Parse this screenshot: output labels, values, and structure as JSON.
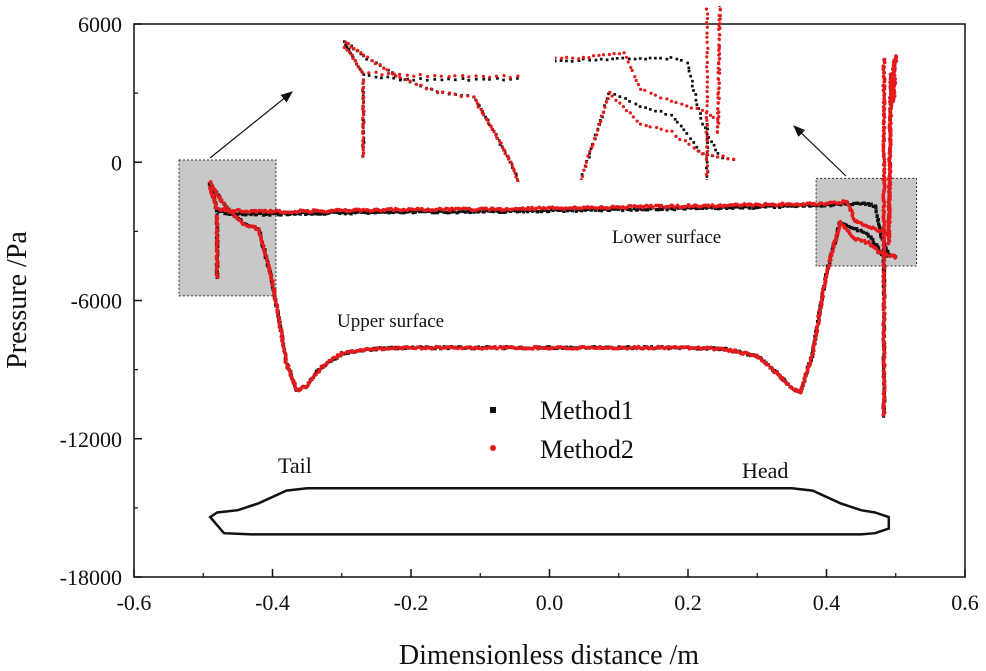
{
  "chart_data": {
    "type": "scatter",
    "xlabel": "Dimensionless distance /m",
    "ylabel": "Pressure /Pa",
    "xlim": [
      -0.6,
      0.6
    ],
    "ylim": [
      -18000,
      6000
    ],
    "x_ticks": [
      "-0.6",
      "-0.4",
      "-0.2",
      "0.0",
      "0.2",
      "0.4",
      "0.6"
    ],
    "y_ticks": [
      "6000",
      "0",
      "-6000",
      "-12000",
      "-18000"
    ],
    "legend_placement": "center",
    "grid": false,
    "colors": {
      "method1": "#111111",
      "method2": "#e41a1c",
      "zoom_box": "#c8c8c8"
    },
    "annotations": {
      "lower_surface": "Lower surface",
      "upper_surface": "Upper surface",
      "tail": "Tail",
      "head": "Head"
    },
    "series": [
      {
        "name": "Method1",
        "marker": "square",
        "color": "#111111",
        "upper_surface": {
          "x": [
            -0.49,
            -0.48,
            -0.46,
            -0.44,
            -0.42,
            -0.4,
            -0.38,
            -0.365,
            -0.35,
            -0.33,
            -0.3,
            -0.28,
            -0.25,
            -0.2,
            -0.1,
            0.0,
            0.1,
            0.2,
            0.25,
            0.3,
            0.33,
            0.35,
            0.362,
            0.38,
            0.4,
            0.42,
            0.44,
            0.46,
            0.48,
            0.5
          ],
          "y": [
            -900,
            -1400,
            -2200,
            -2700,
            -2900,
            -5200,
            -8700,
            -9900,
            -9700,
            -8900,
            -8300,
            -8200,
            -8100,
            -8050,
            -8050,
            -8050,
            -8050,
            -8050,
            -8100,
            -8400,
            -9200,
            -9800,
            -10000,
            -8300,
            -4800,
            -2600,
            -2900,
            -3100,
            -4000,
            -4100
          ]
        },
        "lower_surface": {
          "x": [
            -0.49,
            -0.48,
            -0.46,
            -0.4,
            -0.3,
            -0.2,
            -0.1,
            0.0,
            0.1,
            0.2,
            0.3,
            0.4,
            0.44,
            0.46,
            0.47,
            0.48,
            0.49
          ],
          "y": [
            -1000,
            -2100,
            -2250,
            -2250,
            -2200,
            -2150,
            -2150,
            -2100,
            -2050,
            -2000,
            -1950,
            -1850,
            -1800,
            -1800,
            -1900,
            -3300,
            -4000
          ]
        },
        "tail_spike": {
          "x": [
            -0.48,
            -0.48
          ],
          "y": [
            -2300,
            -5000
          ]
        },
        "head_spike": {
          "x": [
            0.483,
            0.483
          ],
          "y": [
            -3300,
            -11000
          ]
        }
      },
      {
        "name": "Method2",
        "marker": "circle",
        "color": "#e41a1c",
        "upper_surface": {
          "x": [
            -0.49,
            -0.48,
            -0.46,
            -0.44,
            -0.42,
            -0.4,
            -0.38,
            -0.365,
            -0.35,
            -0.33,
            -0.3,
            -0.28,
            -0.25,
            -0.2,
            -0.1,
            0.0,
            0.1,
            0.2,
            0.25,
            0.3,
            0.33,
            0.35,
            0.362,
            0.38,
            0.4,
            0.42,
            0.44,
            0.46,
            0.48,
            0.5
          ],
          "y": [
            -900,
            -1400,
            -2200,
            -2700,
            -2900,
            -5200,
            -8700,
            -9900,
            -9700,
            -8900,
            -8300,
            -8200,
            -8100,
            -8050,
            -8050,
            -8050,
            -8050,
            -8050,
            -8100,
            -8400,
            -9200,
            -9800,
            -10000,
            -8300,
            -4800,
            -2600,
            -3300,
            -3500,
            -4000,
            -4100
          ]
        },
        "lower_surface": {
          "x": [
            -0.49,
            -0.48,
            -0.46,
            -0.4,
            -0.3,
            -0.2,
            -0.1,
            0.0,
            0.1,
            0.2,
            0.3,
            0.4,
            0.43,
            0.44,
            0.46,
            0.47,
            0.48,
            0.49
          ],
          "y": [
            -1100,
            -2000,
            -2100,
            -2150,
            -2100,
            -2050,
            -2050,
            -2000,
            -1950,
            -1900,
            -1850,
            -1800,
            -1700,
            -2500,
            -2800,
            -2900,
            -3000,
            -3200
          ]
        },
        "tail_spike": {
          "x": [
            -0.48,
            -0.48
          ],
          "y": [
            -2300,
            -5000
          ]
        },
        "head_spike": {
          "x": [
            0.483,
            0.483
          ],
          "y": [
            4500,
            -11000
          ]
        },
        "head_loop": {
          "x": [
            0.49,
            0.492,
            0.495,
            0.497,
            0.5,
            0.497,
            0.493,
            0.49
          ],
          "y": [
            -3500,
            1500,
            3800,
            4200,
            4600,
            2600,
            3800,
            -3500
          ]
        }
      }
    ],
    "train_outline": {
      "x": [
        -0.49,
        -0.48,
        -0.45,
        -0.42,
        -0.38,
        -0.35,
        -0.3,
        -0.2,
        0.0,
        0.2,
        0.3,
        0.35,
        0.38,
        0.42,
        0.45,
        0.47,
        0.49,
        0.49,
        0.47,
        0.45,
        0.43,
        0.35,
        0.2,
        0.0,
        -0.2,
        -0.35,
        -0.43,
        -0.47,
        -0.49
      ],
      "y": [
        -15400,
        -15200,
        -15100,
        -14800,
        -14250,
        -14150,
        -14150,
        -14150,
        -14150,
        -14150,
        -14150,
        -14150,
        -14250,
        -14800,
        -15100,
        -15200,
        -15400,
        -15900,
        -16100,
        -16150,
        -16150,
        -16150,
        -16150,
        -16150,
        -16150,
        -16150,
        -16150,
        -16100,
        -15400
      ]
    },
    "zoom_regions": [
      {
        "side": "tail",
        "xlim": [
          -0.535,
          -0.395
        ],
        "ylim": [
          -5800,
          100
        ]
      },
      {
        "side": "head",
        "xlim": [
          0.385,
          0.53
        ],
        "ylim": [
          -4500,
          -700
        ]
      }
    ]
  }
}
